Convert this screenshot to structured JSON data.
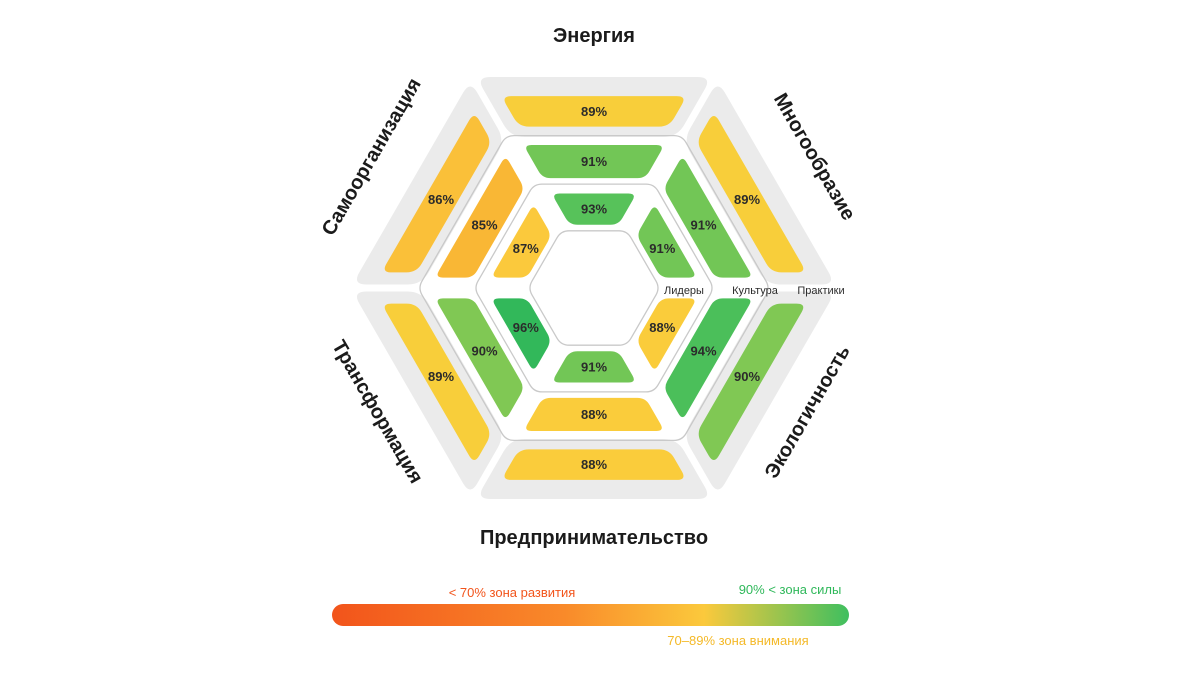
{
  "chart_data": {
    "type": "hexagonal-radial-heatmap",
    "title": "",
    "dimensions": [
      "Энергия",
      "Многообразие",
      "Экологичность",
      "Предпринимательство",
      "Трансформация",
      "Самоорганизация"
    ],
    "rings": [
      "Лидеры",
      "Культура",
      "Практики"
    ],
    "values": {
      "Лидеры": [
        93,
        91,
        88,
        91,
        96,
        87
      ],
      "Культура": [
        91,
        91,
        94,
        88,
        90,
        85
      ],
      "Практики": [
        89,
        89,
        90,
        88,
        89,
        86
      ]
    },
    "value_suffix": "%",
    "legend": {
      "development": "< 70% зона развития",
      "attention": "70–89% зона внимания",
      "strength": "90% < зона силы"
    },
    "colors": {
      "development": "#f2541b",
      "attention": "#fbc93c",
      "strength": "#3fbf5f",
      "track": "#ebebeb",
      "outline": "#c9c9c9"
    }
  }
}
